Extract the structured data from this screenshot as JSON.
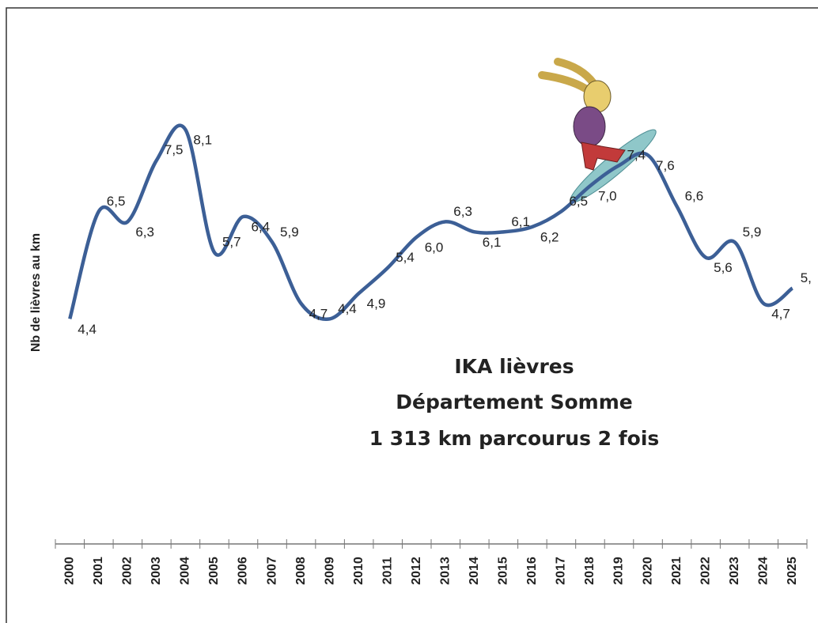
{
  "chart_data": {
    "type": "line",
    "title_lines": [
      "IKA lièvres",
      "Département Somme",
      "1 313 km parcourus 2 fois"
    ],
    "y_label": "Nb de lièvres au km",
    "categories": [
      "2000",
      "2001",
      "2002",
      "2003",
      "2004",
      "2005",
      "2006",
      "2007",
      "2008",
      "2009",
      "2010",
      "2011",
      "2012",
      "2013",
      "2014",
      "2015",
      "2016",
      "2017",
      "2018",
      "2019",
      "2020",
      "2021",
      "2022",
      "2023",
      "2024",
      "2025"
    ],
    "values": [
      4.4,
      6.5,
      6.3,
      7.5,
      8.1,
      5.7,
      6.4,
      5.9,
      4.7,
      4.4,
      4.9,
      5.4,
      6.0,
      6.3,
      6.1,
      6.1,
      6.2,
      6.5,
      7.0,
      7.4,
      7.6,
      6.6,
      5.6,
      5.9,
      4.7,
      5.0
    ],
    "value_labels": [
      "4,4",
      "6,5",
      "6,3",
      "7,5",
      "8,1",
      "5,7",
      "6,4",
      "5,9",
      "4,7",
      "4,4",
      "4,9",
      "5,4",
      "6,0",
      "6,3",
      "6,1",
      "6,1",
      "6,2",
      "6,5",
      "7,0",
      "7,4",
      "7,6",
      "6,6",
      "5,6",
      "5,9",
      "4,7",
      "5,"
    ],
    "color": "#3c5f96",
    "ylim": [
      0,
      10
    ]
  }
}
